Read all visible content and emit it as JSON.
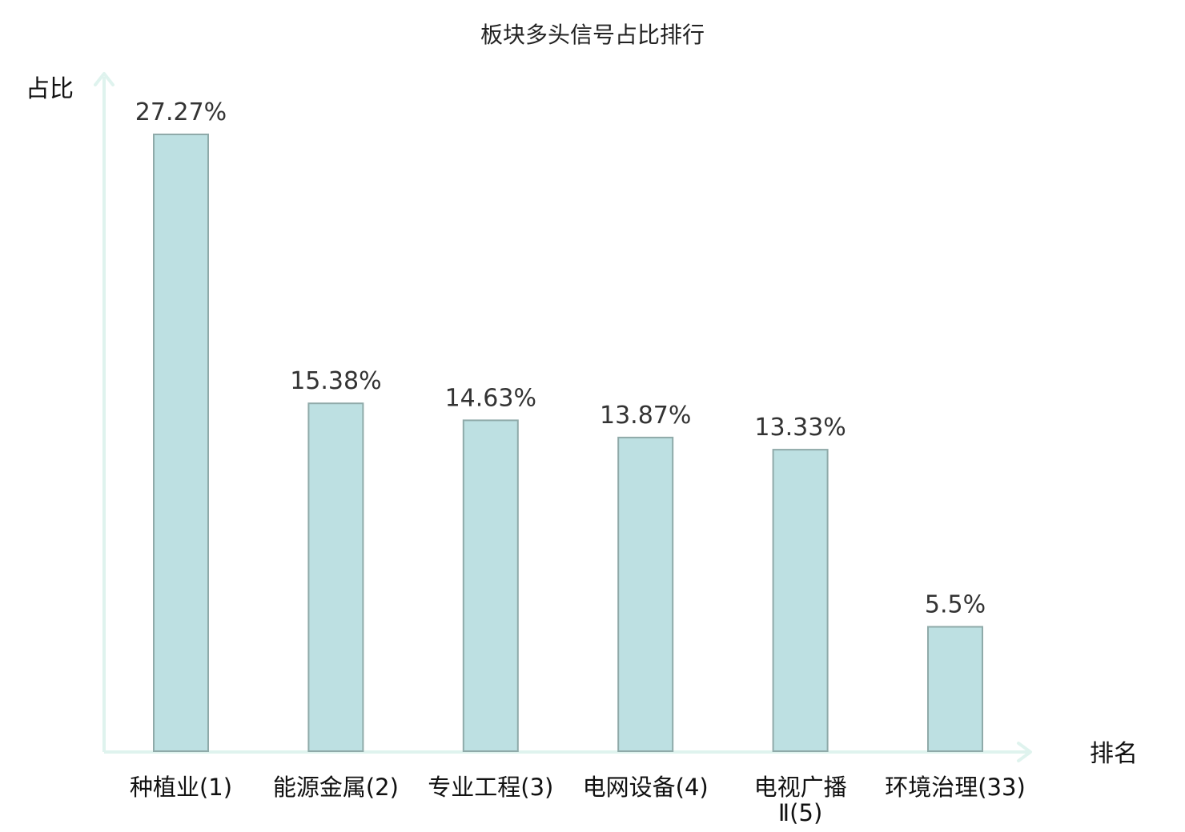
{
  "chart_data": {
    "type": "bar",
    "title": "板块多头信号占比排行",
    "ylabel": "占比",
    "xlabel": "排名",
    "categories": [
      "种植业(1)",
      "能源金属(2)",
      "专业工程(3)",
      "电网设备(4)",
      "电视广播Ⅱ(5)",
      "环境治理(33)"
    ],
    "category_lines": [
      [
        "种植业(1)"
      ],
      [
        "能源金属(2)"
      ],
      [
        "专业工程(3)"
      ],
      [
        "电网设备(4)"
      ],
      [
        "电视广播",
        "Ⅱ(5)"
      ],
      [
        "环境治理(33)"
      ]
    ],
    "values": [
      27.27,
      15.38,
      14.63,
      13.87,
      13.33,
      5.5
    ],
    "value_labels": [
      "27.27%",
      "15.38%",
      "14.63%",
      "13.87%",
      "13.33%",
      "5.5%"
    ],
    "highlight_index": 5,
    "ylim": [
      0,
      27.27
    ],
    "grid": false,
    "colors": {
      "bar_fill": "#bde0e2",
      "bar_stroke": "#8faaa9",
      "axis": "#dff3ee",
      "highlight_label": "#e00000",
      "normal_label": "#111111"
    }
  }
}
